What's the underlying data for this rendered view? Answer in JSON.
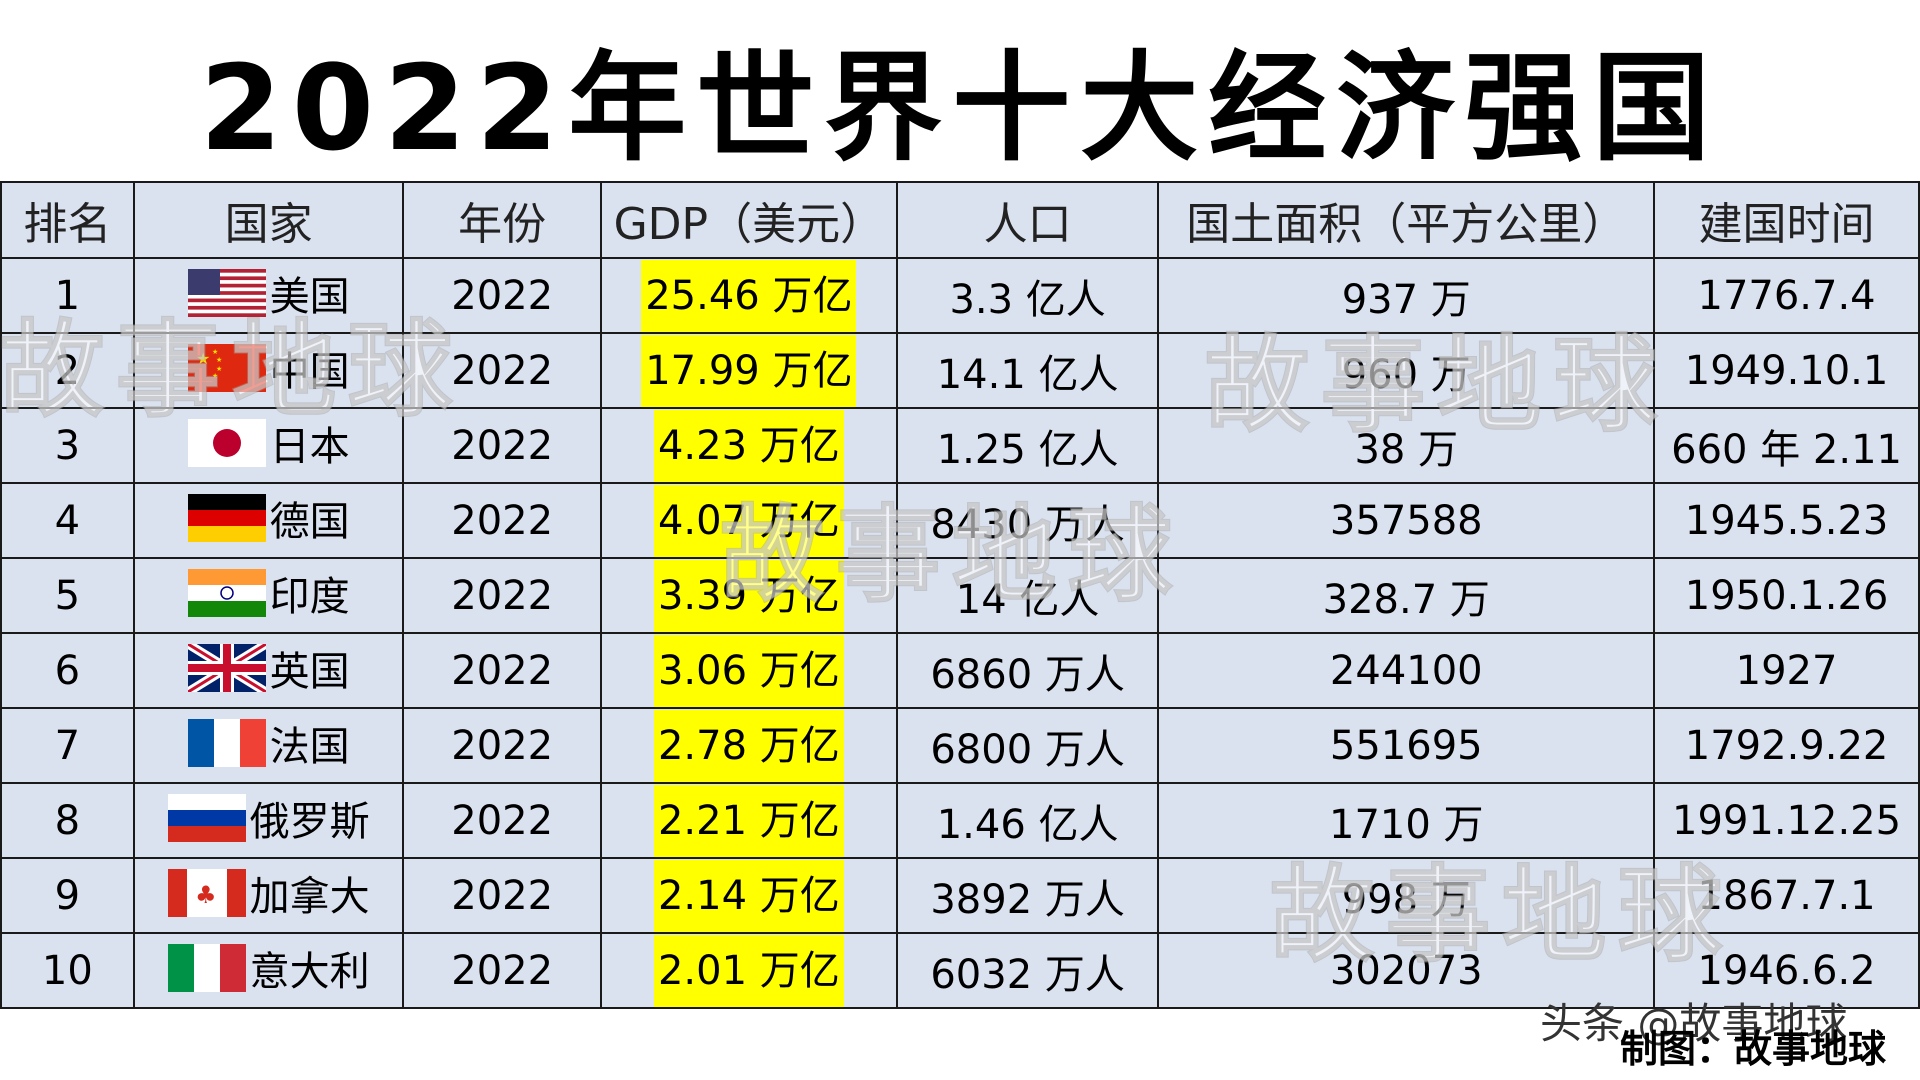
{
  "title": "2022年世界十大经济强国",
  "headers": [
    "排名",
    "国家",
    "年份",
    "GDP（美元）",
    "人口",
    "国土面积（平方公里）",
    "建国时间"
  ],
  "rows": [
    {
      "rank": "1",
      "flag": "us-flag-icon",
      "country": "美国",
      "year": "2022",
      "gdp": "25.46 万亿",
      "population": "3.3 亿人",
      "area": "937 万",
      "founded": "1776.7.4"
    },
    {
      "rank": "2",
      "flag": "cn-flag-icon",
      "country": "中国",
      "year": "2022",
      "gdp": "17.99 万亿",
      "population": "14.1 亿人",
      "area": "960 万",
      "founded": "1949.10.1"
    },
    {
      "rank": "3",
      "flag": "jp-flag-icon",
      "country": "日本",
      "year": "2022",
      "gdp": "4.23 万亿",
      "population": "1.25 亿人",
      "area": "38 万",
      "founded": "660 年 2.11"
    },
    {
      "rank": "4",
      "flag": "de-flag-icon",
      "country": "德国",
      "year": "2022",
      "gdp": "4.07 万亿",
      "population": "8430 万人",
      "area": "357588",
      "founded": "1945.5.23"
    },
    {
      "rank": "5",
      "flag": "in-flag-icon",
      "country": "印度",
      "year": "2022",
      "gdp": "3.39 万亿",
      "population": "14 亿人",
      "area": "328.7 万",
      "founded": "1950.1.26"
    },
    {
      "rank": "6",
      "flag": "gb-flag-icon",
      "country": "英国",
      "year": "2022",
      "gdp": "3.06 万亿",
      "population": "6860 万人",
      "area": "244100",
      "founded": "1927"
    },
    {
      "rank": "7",
      "flag": "fr-flag-icon",
      "country": "法国",
      "year": "2022",
      "gdp": "2.78 万亿",
      "population": "6800 万人",
      "area": "551695",
      "founded": "1792.9.22"
    },
    {
      "rank": "8",
      "flag": "ru-flag-icon",
      "country": "俄罗斯",
      "year": "2022",
      "gdp": "2.21 万亿",
      "population": "1.46 亿人",
      "area": "1710 万",
      "founded": "1991.12.25"
    },
    {
      "rank": "9",
      "flag": "ca-flag-icon",
      "country": "加拿大",
      "year": "2022",
      "gdp": "2.14 万亿",
      "population": "3892 万人",
      "area": "998 万",
      "founded": "1867.7.1"
    },
    {
      "rank": "10",
      "flag": "it-flag-icon",
      "country": "意大利",
      "year": "2022",
      "gdp": "2.01 万亿",
      "population": "6032 万人",
      "area": "302073",
      "founded": "1946.6.2"
    }
  ],
  "watermark": "故事地球",
  "footer": {
    "source": "头条 @故事地球",
    "credit": "制图：故事地球"
  },
  "colors": {
    "header_bg": "#dbe2ef",
    "rank_bg": "#5b8fd6",
    "founded_bg": "#8cc153",
    "gdp_highlight": "#ffff00"
  }
}
